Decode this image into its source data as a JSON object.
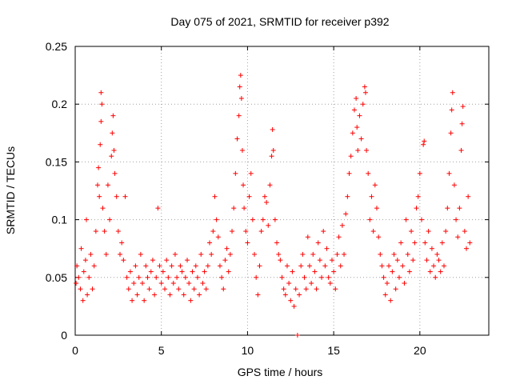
{
  "chart_data": {
    "type": "scatter",
    "title": "Day 075 of 2021, SRMTID for receiver p392",
    "xlabel": "GPS time / hours",
    "ylabel": "SRMTID / TECUs",
    "xlim": [
      0,
      24
    ],
    "ylim": [
      0,
      0.25
    ],
    "xticks": [
      0,
      5,
      10,
      15,
      20
    ],
    "yticks": [
      0,
      0.05,
      0.1,
      0.15,
      0.2,
      0.25
    ],
    "xtick_labels": [
      "0",
      "5",
      "10",
      "15",
      "20"
    ],
    "ytick_labels": [
      "0",
      "0.05",
      "0.1",
      "0.15",
      "0.2",
      "0.25"
    ],
    "grid": true,
    "marker": "+",
    "color": "#ff0000",
    "series": [
      {
        "name": "SRMTID",
        "points": [
          [
            0.05,
            0.045
          ],
          [
            0.1,
            0.06
          ],
          [
            0.2,
            0.05
          ],
          [
            0.3,
            0.04
          ],
          [
            0.35,
            0.075
          ],
          [
            0.45,
            0.03
          ],
          [
            0.5,
            0.055
          ],
          [
            0.6,
            0.065
          ],
          [
            0.65,
            0.1
          ],
          [
            0.7,
            0.035
          ],
          [
            0.8,
            0.05
          ],
          [
            0.9,
            0.07
          ],
          [
            1.0,
            0.04
          ],
          [
            1.1,
            0.06
          ],
          [
            1.2,
            0.09
          ],
          [
            1.3,
            0.13
          ],
          [
            1.35,
            0.145
          ],
          [
            1.4,
            0.12
          ],
          [
            1.45,
            0.165
          ],
          [
            1.5,
            0.185
          ],
          [
            1.5,
            0.21
          ],
          [
            1.55,
            0.2
          ],
          [
            1.6,
            0.11
          ],
          [
            1.7,
            0.09
          ],
          [
            1.8,
            0.07
          ],
          [
            1.9,
            0.13
          ],
          [
            2.0,
            0.1
          ],
          [
            2.1,
            0.155
          ],
          [
            2.15,
            0.175
          ],
          [
            2.2,
            0.19
          ],
          [
            2.25,
            0.16
          ],
          [
            2.3,
            0.14
          ],
          [
            2.4,
            0.12
          ],
          [
            2.5,
            0.09
          ],
          [
            2.6,
            0.07
          ],
          [
            2.7,
            0.08
          ],
          [
            2.8,
            0.065
          ],
          [
            2.9,
            0.12
          ],
          [
            3.0,
            0.05
          ],
          [
            3.1,
            0.04
          ],
          [
            3.2,
            0.055
          ],
          [
            3.3,
            0.03
          ],
          [
            3.4,
            0.045
          ],
          [
            3.5,
            0.06
          ],
          [
            3.6,
            0.035
          ],
          [
            3.7,
            0.05
          ],
          [
            3.8,
            0.07
          ],
          [
            3.9,
            0.045
          ],
          [
            4.0,
            0.03
          ],
          [
            4.1,
            0.06
          ],
          [
            4.2,
            0.05
          ],
          [
            4.3,
            0.04
          ],
          [
            4.4,
            0.055
          ],
          [
            4.5,
            0.065
          ],
          [
            4.6,
            0.035
          ],
          [
            4.7,
            0.05
          ],
          [
            4.8,
            0.11
          ],
          [
            4.9,
            0.06
          ],
          [
            5.0,
            0.045
          ],
          [
            5.1,
            0.055
          ],
          [
            5.2,
            0.04
          ],
          [
            5.3,
            0.065
          ],
          [
            5.4,
            0.05
          ],
          [
            5.5,
            0.035
          ],
          [
            5.6,
            0.06
          ],
          [
            5.7,
            0.045
          ],
          [
            5.8,
            0.07
          ],
          [
            5.9,
            0.05
          ],
          [
            6.0,
            0.04
          ],
          [
            6.1,
            0.06
          ],
          [
            6.2,
            0.055
          ],
          [
            6.3,
            0.035
          ],
          [
            6.4,
            0.05
          ],
          [
            6.5,
            0.065
          ],
          [
            6.6,
            0.045
          ],
          [
            6.7,
            0.03
          ],
          [
            6.8,
            0.055
          ],
          [
            6.9,
            0.04
          ],
          [
            7.0,
            0.06
          ],
          [
            7.1,
            0.05
          ],
          [
            7.2,
            0.035
          ],
          [
            7.3,
            0.07
          ],
          [
            7.4,
            0.045
          ],
          [
            7.5,
            0.055
          ],
          [
            7.6,
            0.04
          ],
          [
            7.7,
            0.06
          ],
          [
            7.8,
            0.08
          ],
          [
            7.9,
            0.07
          ],
          [
            8.0,
            0.09
          ],
          [
            8.1,
            0.12
          ],
          [
            8.2,
            0.1
          ],
          [
            8.3,
            0.085
          ],
          [
            8.4,
            0.06
          ],
          [
            8.5,
            0.05
          ],
          [
            8.6,
            0.04
          ],
          [
            8.7,
            0.065
          ],
          [
            8.8,
            0.075
          ],
          [
            8.9,
            0.055
          ],
          [
            9.0,
            0.07
          ],
          [
            9.1,
            0.09
          ],
          [
            9.2,
            0.11
          ],
          [
            9.3,
            0.14
          ],
          [
            9.4,
            0.17
          ],
          [
            9.5,
            0.19
          ],
          [
            9.55,
            0.215
          ],
          [
            9.6,
            0.225
          ],
          [
            9.65,
            0.205
          ],
          [
            9.7,
            0.16
          ],
          [
            9.75,
            0.13
          ],
          [
            9.8,
            0.11
          ],
          [
            9.9,
            0.09
          ],
          [
            10.0,
            0.08
          ],
          [
            10.1,
            0.12
          ],
          [
            10.2,
            0.14
          ],
          [
            10.3,
            0.1
          ],
          [
            10.4,
            0.07
          ],
          [
            10.5,
            0.05
          ],
          [
            10.6,
            0.035
          ],
          [
            10.7,
            0.06
          ],
          [
            10.8,
            0.09
          ],
          [
            10.9,
            0.1
          ],
          [
            11.0,
            0.12
          ],
          [
            11.1,
            0.115
          ],
          [
            11.2,
            0.095
          ],
          [
            11.3,
            0.13
          ],
          [
            11.4,
            0.155
          ],
          [
            11.45,
            0.178
          ],
          [
            11.5,
            0.16
          ],
          [
            11.6,
            0.1
          ],
          [
            11.7,
            0.08
          ],
          [
            11.8,
            0.07
          ],
          [
            11.9,
            0.065
          ],
          [
            12.0,
            0.05
          ],
          [
            12.1,
            0.04
          ],
          [
            12.2,
            0.035
          ],
          [
            12.3,
            0.06
          ],
          [
            12.4,
            0.045
          ],
          [
            12.5,
            0.03
          ],
          [
            12.6,
            0.055
          ],
          [
            12.7,
            0.025
          ],
          [
            12.8,
            0.04
          ],
          [
            12.9,
            0.0
          ],
          [
            13.0,
            0.035
          ],
          [
            13.1,
            0.06
          ],
          [
            13.2,
            0.07
          ],
          [
            13.3,
            0.05
          ],
          [
            13.4,
            0.04
          ],
          [
            13.5,
            0.085
          ],
          [
            13.6,
            0.06
          ],
          [
            13.7,
            0.045
          ],
          [
            13.8,
            0.07
          ],
          [
            13.9,
            0.055
          ],
          [
            14.0,
            0.04
          ],
          [
            14.1,
            0.08
          ],
          [
            14.2,
            0.065
          ],
          [
            14.3,
            0.05
          ],
          [
            14.4,
            0.09
          ],
          [
            14.5,
            0.06
          ],
          [
            14.6,
            0.075
          ],
          [
            14.7,
            0.05
          ],
          [
            14.8,
            0.045
          ],
          [
            14.9,
            0.065
          ],
          [
            15.0,
            0.055
          ],
          [
            15.1,
            0.04
          ],
          [
            15.2,
            0.07
          ],
          [
            15.3,
            0.085
          ],
          [
            15.4,
            0.06
          ],
          [
            15.5,
            0.095
          ],
          [
            15.6,
            0.07
          ],
          [
            15.7,
            0.105
          ],
          [
            15.8,
            0.12
          ],
          [
            15.9,
            0.14
          ],
          [
            16.0,
            0.155
          ],
          [
            16.1,
            0.175
          ],
          [
            16.2,
            0.195
          ],
          [
            16.3,
            0.205
          ],
          [
            16.35,
            0.18
          ],
          [
            16.4,
            0.16
          ],
          [
            16.5,
            0.19
          ],
          [
            16.6,
            0.17
          ],
          [
            16.7,
            0.2
          ],
          [
            16.8,
            0.215
          ],
          [
            16.85,
            0.21
          ],
          [
            16.9,
            0.16
          ],
          [
            17.0,
            0.14
          ],
          [
            17.1,
            0.1
          ],
          [
            17.2,
            0.12
          ],
          [
            17.3,
            0.09
          ],
          [
            17.4,
            0.13
          ],
          [
            17.5,
            0.11
          ],
          [
            17.6,
            0.085
          ],
          [
            17.7,
            0.07
          ],
          [
            17.8,
            0.06
          ],
          [
            17.9,
            0.05
          ],
          [
            18.0,
            0.035
          ],
          [
            18.1,
            0.045
          ],
          [
            18.2,
            0.06
          ],
          [
            18.3,
            0.03
          ],
          [
            18.4,
            0.055
          ],
          [
            18.5,
            0.07
          ],
          [
            18.6,
            0.04
          ],
          [
            18.7,
            0.065
          ],
          [
            18.8,
            0.05
          ],
          [
            18.9,
            0.08
          ],
          [
            19.0,
            0.06
          ],
          [
            19.1,
            0.045
          ],
          [
            19.2,
            0.1
          ],
          [
            19.3,
            0.07
          ],
          [
            19.4,
            0.055
          ],
          [
            19.5,
            0.09
          ],
          [
            19.6,
            0.065
          ],
          [
            19.7,
            0.08
          ],
          [
            19.8,
            0.11
          ],
          [
            19.9,
            0.12
          ],
          [
            20.0,
            0.14
          ],
          [
            20.1,
            0.1
          ],
          [
            20.2,
            0.165
          ],
          [
            20.25,
            0.168
          ],
          [
            20.3,
            0.08
          ],
          [
            20.4,
            0.065
          ],
          [
            20.5,
            0.09
          ],
          [
            20.6,
            0.055
          ],
          [
            20.7,
            0.075
          ],
          [
            20.8,
            0.06
          ],
          [
            20.9,
            0.05
          ],
          [
            21.0,
            0.07
          ],
          [
            21.1,
            0.065
          ],
          [
            21.2,
            0.055
          ],
          [
            21.3,
            0.08
          ],
          [
            21.4,
            0.06
          ],
          [
            21.5,
            0.09
          ],
          [
            21.6,
            0.11
          ],
          [
            21.7,
            0.14
          ],
          [
            21.8,
            0.175
          ],
          [
            21.85,
            0.195
          ],
          [
            21.9,
            0.21
          ],
          [
            22.0,
            0.13
          ],
          [
            22.1,
            0.1
          ],
          [
            22.2,
            0.085
          ],
          [
            22.3,
            0.11
          ],
          [
            22.4,
            0.16
          ],
          [
            22.45,
            0.183
          ],
          [
            22.5,
            0.198
          ],
          [
            22.6,
            0.09
          ],
          [
            22.7,
            0.075
          ],
          [
            22.8,
            0.12
          ],
          [
            22.9,
            0.08
          ]
        ]
      }
    ]
  }
}
